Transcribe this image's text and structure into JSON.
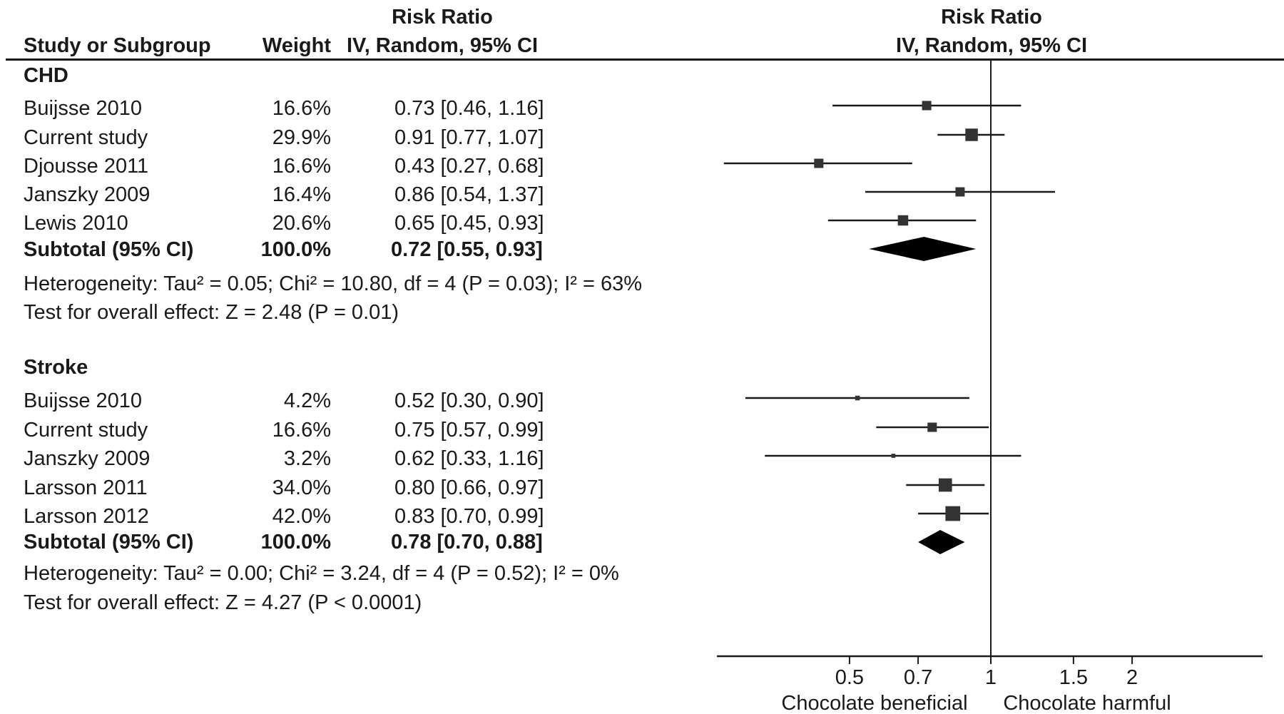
{
  "headers": {
    "study": "Study or Subgroup",
    "weight": "Weight",
    "effect_top": "Risk Ratio",
    "effect_bottom": "IV, Random, 95% CI",
    "plot_top": "Risk Ratio",
    "plot_bottom": "IV, Random, 95% CI"
  },
  "groups": [
    {
      "name": "CHD",
      "studies": [
        {
          "study": "Buijsse 2010",
          "weight": "16.6%",
          "ci_text": "0.73 [0.46, 1.16]"
        },
        {
          "study": "Current study",
          "weight": "29.9%",
          "ci_text": "0.91 [0.77, 1.07]"
        },
        {
          "study": "Djousse 2011",
          "weight": "16.6%",
          "ci_text": "0.43 [0.27, 0.68]"
        },
        {
          "study": "Janszky 2009",
          "weight": "16.4%",
          "ci_text": "0.86 [0.54, 1.37]"
        },
        {
          "study": "Lewis 2010",
          "weight": "20.6%",
          "ci_text": "0.65 [0.45, 0.93]"
        }
      ],
      "subtotal": {
        "label": "Subtotal (95% CI)",
        "weight": "100.0%",
        "ci_text": "0.72 [0.55, 0.93]"
      },
      "heterogeneity": "Heterogeneity: Tau² = 0.05; Chi² = 10.80, df = 4 (P = 0.03); I² = 63%",
      "overall": "Test for overall effect: Z = 2.48 (P = 0.01)"
    },
    {
      "name": "Stroke",
      "studies": [
        {
          "study": "Buijsse 2010",
          "weight": "4.2%",
          "ci_text": "0.52 [0.30, 0.90]"
        },
        {
          "study": "Current study",
          "weight": "16.6%",
          "ci_text": "0.75 [0.57, 0.99]"
        },
        {
          "study": "Janszky 2009",
          "weight": "3.2%",
          "ci_text": "0.62 [0.33, 1.16]"
        },
        {
          "study": "Larsson 2011",
          "weight": "34.0%",
          "ci_text": "0.80 [0.66, 0.97]"
        },
        {
          "study": "Larsson 2012",
          "weight": "42.0%",
          "ci_text": "0.83 [0.70, 0.99]"
        }
      ],
      "subtotal": {
        "label": "Subtotal (95% CI)",
        "weight": "100.0%",
        "ci_text": "0.78 [0.70, 0.88]"
      },
      "heterogeneity": "Heterogeneity: Tau² = 0.00; Chi² = 3.24, df = 4 (P = 0.52); I² = 0%",
      "overall": "Test for overall effect: Z = 4.27 (P < 0.0001)"
    }
  ],
  "chart_data": {
    "type": "scatter",
    "subtype": "forest-plot",
    "scale": "log",
    "reference_line": 1,
    "ticks": [
      0.5,
      0.7,
      1,
      1.5,
      2
    ],
    "tick_labels": [
      "0.5",
      "0.7",
      "1",
      "1.5",
      "2"
    ],
    "xlabel_left": "Chocolate beneficial",
    "xlabel_right": "Chocolate harmful",
    "series": [
      {
        "name": "CHD",
        "points": [
          {
            "est": 0.73,
            "lo": 0.46,
            "hi": 1.16,
            "weight": 16.6
          },
          {
            "est": 0.91,
            "lo": 0.77,
            "hi": 1.07,
            "weight": 29.9
          },
          {
            "est": 0.43,
            "lo": 0.27,
            "hi": 0.68,
            "weight": 16.6
          },
          {
            "est": 0.86,
            "lo": 0.54,
            "hi": 1.37,
            "weight": 16.4
          },
          {
            "est": 0.65,
            "lo": 0.45,
            "hi": 0.93,
            "weight": 20.6
          }
        ],
        "subtotal": {
          "est": 0.72,
          "lo": 0.55,
          "hi": 0.93
        }
      },
      {
        "name": "Stroke",
        "points": [
          {
            "est": 0.52,
            "lo": 0.3,
            "hi": 0.9,
            "weight": 4.2
          },
          {
            "est": 0.75,
            "lo": 0.57,
            "hi": 0.99,
            "weight": 16.6
          },
          {
            "est": 0.62,
            "lo": 0.33,
            "hi": 1.16,
            "weight": 3.2
          },
          {
            "est": 0.8,
            "lo": 0.66,
            "hi": 0.97,
            "weight": 34.0
          },
          {
            "est": 0.83,
            "lo": 0.7,
            "hi": 0.99,
            "weight": 42.0
          }
        ],
        "subtotal": {
          "est": 0.78,
          "lo": 0.7,
          "hi": 0.88
        }
      }
    ]
  }
}
